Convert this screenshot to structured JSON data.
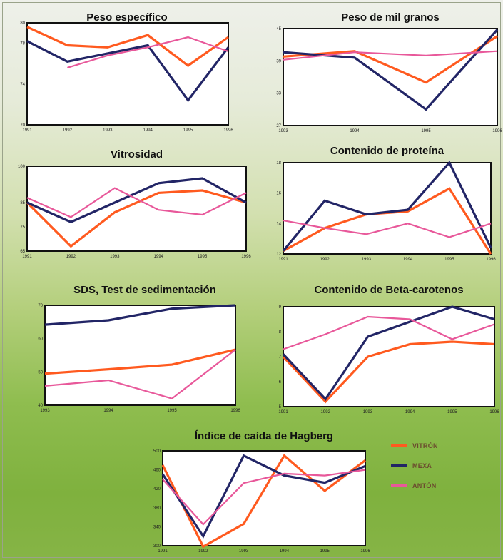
{
  "colors": {
    "vitron": "#ff5a1f",
    "mexa": "#222566",
    "anton": "#e8589a"
  },
  "legend": [
    {
      "key": "vitron",
      "label": "VITRÓN"
    },
    {
      "key": "mexa",
      "label": "MEXA"
    },
    {
      "key": "anton",
      "label": "ANTÓN"
    }
  ],
  "chart_data": [
    {
      "id": "peso-especifico",
      "type": "line",
      "title": "Peso específico",
      "x": [
        1991,
        1992,
        1993,
        1994,
        1995,
        1996
      ],
      "xticks": [
        "1991",
        "1992",
        "1993",
        "1994",
        "1995",
        "1996"
      ],
      "ylim": [
        70,
        80
      ],
      "yticks": [
        "70",
        "74",
        "78",
        "80"
      ],
      "ytick_values": [
        70,
        74,
        78,
        80
      ],
      "series": [
        {
          "key": "vitron",
          "values": [
            79.6,
            77.8,
            77.6,
            78.8,
            75.8,
            78.6
          ]
        },
        {
          "key": "mexa",
          "values": [
            78.2,
            76.2,
            77.0,
            77.8,
            72.4,
            77.6
          ]
        },
        {
          "key": "anton",
          "values": [
            null,
            75.6,
            76.8,
            77.6,
            78.6,
            77.2
          ]
        }
      ]
    },
    {
      "id": "peso-mil-granos",
      "type": "line",
      "title": "Peso de mil granos",
      "x": [
        1993,
        1994,
        1995,
        1996
      ],
      "xticks": [
        "1993",
        "1994",
        "1995",
        "1996"
      ],
      "ylim": [
        27,
        45
      ],
      "yticks": [
        "27",
        "33",
        "39",
        "45"
      ],
      "ytick_values": [
        27,
        33,
        39,
        45
      ],
      "series": [
        {
          "key": "vitron",
          "values": [
            39.8,
            40.8,
            35.0,
            43.6
          ]
        },
        {
          "key": "mexa",
          "values": [
            40.6,
            39.6,
            30.0,
            44.8
          ]
        },
        {
          "key": "anton",
          "values": [
            39.2,
            40.6,
            40.0,
            40.8
          ]
        }
      ]
    },
    {
      "id": "vitrosidad",
      "type": "line",
      "title": "Vitrosidad",
      "x": [
        1991,
        1992,
        1993,
        1994,
        1995,
        1996
      ],
      "xticks": [
        "1991",
        "1992",
        "1993",
        "1994",
        "1995",
        "1996"
      ],
      "ylim": [
        65,
        100
      ],
      "yticks": [
        "65",
        "75",
        "85",
        "100"
      ],
      "ytick_values": [
        65,
        75,
        85,
        100
      ],
      "series": [
        {
          "key": "vitron",
          "values": [
            85,
            67,
            81,
            89,
            90,
            85
          ]
        },
        {
          "key": "mexa",
          "values": [
            85,
            77,
            85,
            93,
            95,
            85
          ]
        },
        {
          "key": "anton",
          "values": [
            87,
            79,
            91,
            82,
            80,
            89
          ]
        }
      ]
    },
    {
      "id": "contenido-proteina",
      "type": "line",
      "title": "Contenido de proteína",
      "x": [
        1991,
        1992,
        1993,
        1994,
        1995,
        1996
      ],
      "xticks": [
        "1991",
        "1992",
        "1993",
        "1994",
        "1995",
        "1996"
      ],
      "ylim": [
        12,
        18
      ],
      "yticks": [
        "12",
        "14",
        "16",
        "18"
      ],
      "ytick_values": [
        12,
        14,
        16,
        18
      ],
      "series": [
        {
          "key": "vitron",
          "values": [
            12.2,
            13.7,
            14.6,
            14.8,
            16.3,
            12.0
          ]
        },
        {
          "key": "mexa",
          "values": [
            12.2,
            15.5,
            14.6,
            14.9,
            18.0,
            12.4
          ]
        },
        {
          "key": "anton",
          "values": [
            14.2,
            13.7,
            13.3,
            14.0,
            13.1,
            14.0
          ]
        }
      ]
    },
    {
      "id": "sds-sedimentacion",
      "type": "line",
      "title": "SDS, Test de sedimentación",
      "x": [
        1993,
        1994,
        1995,
        1996
      ],
      "xticks": [
        "1993",
        "1994",
        "1995",
        "1996"
      ],
      "ylim": [
        40,
        70
      ],
      "yticks": [
        "40",
        "50",
        "60",
        "70"
      ],
      "ytick_values": [
        40,
        50,
        60,
        70
      ],
      "series": [
        {
          "key": "vitron",
          "values": [
            49.5,
            50.8,
            52.2,
            56.7
          ]
        },
        {
          "key": "mexa",
          "values": [
            64.2,
            65.5,
            69.0,
            70.0
          ]
        },
        {
          "key": "anton",
          "values": [
            45.8,
            47.5,
            42.0,
            56.7
          ]
        }
      ]
    },
    {
      "id": "beta-carotenos",
      "type": "line",
      "title": "Contenido de Beta-carotenos",
      "x": [
        1991,
        1992,
        1993,
        1994,
        1995,
        1996
      ],
      "xticks": [
        "1991",
        "1992",
        "1993",
        "1994",
        "1995",
        "1996"
      ],
      "ylim": [
        5,
        9
      ],
      "yticks": [
        "5",
        "6",
        "7",
        "8",
        "9"
      ],
      "ytick_values": [
        5,
        6,
        7,
        8,
        9
      ],
      "series": [
        {
          "key": "vitron",
          "values": [
            7.0,
            5.2,
            7.0,
            7.5,
            7.6,
            7.5
          ]
        },
        {
          "key": "mexa",
          "values": [
            7.1,
            5.3,
            7.8,
            8.4,
            9.0,
            8.5
          ]
        },
        {
          "key": "anton",
          "values": [
            7.3,
            7.9,
            8.6,
            8.5,
            7.7,
            8.3
          ]
        }
      ]
    },
    {
      "id": "indice-caida-hagberg",
      "type": "line",
      "title": "Índice de caída de Hagberg",
      "x": [
        1991,
        1992,
        1993,
        1994,
        1995,
        1996
      ],
      "xticks": [
        "1991",
        "1992",
        "1993",
        "1994",
        "1995",
        "1996"
      ],
      "ylim": [
        300,
        500
      ],
      "yticks": [
        "300",
        "340",
        "380",
        "420",
        "460",
        "500"
      ],
      "ytick_values": [
        300,
        340,
        380,
        420,
        460,
        500
      ],
      "series": [
        {
          "key": "vitron",
          "values": [
            470,
            298,
            346,
            490,
            416,
            480
          ]
        },
        {
          "key": "mexa",
          "values": [
            451,
            320,
            490,
            448,
            433,
            468
          ]
        },
        {
          "key": "anton",
          "values": [
            440,
            345,
            432,
            452,
            448,
            460
          ]
        }
      ]
    }
  ]
}
